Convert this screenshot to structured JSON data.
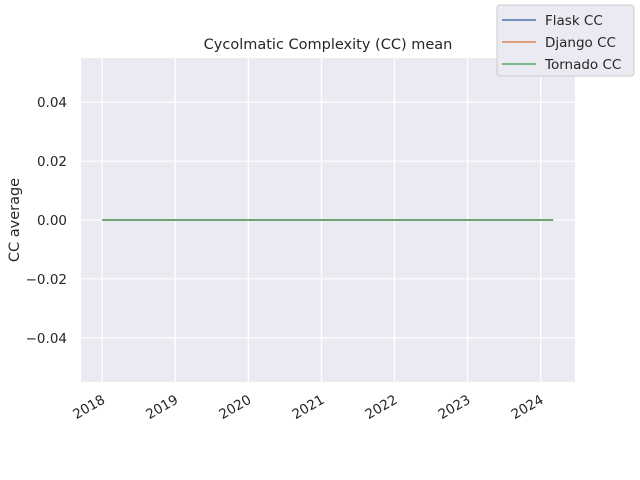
{
  "chart_data": {
    "type": "line",
    "title": "Cycolmatic Complexity (CC) mean",
    "xlabel": "",
    "ylabel": "CC average",
    "x_tick_labels": [
      "2018",
      "2019",
      "2020",
      "2021",
      "2022",
      "2023",
      "2024"
    ],
    "y_tick_labels": [
      "−0.04",
      "−0.02",
      "0.00",
      "0.02",
      "0.04"
    ],
    "x_ticks": [
      2018,
      2019,
      2020,
      2021,
      2022,
      2023,
      2024
    ],
    "y_ticks": [
      -0.04,
      -0.02,
      0.0,
      0.02,
      0.04
    ],
    "xlim": [
      2017.71,
      2024.47
    ],
    "ylim": [
      -0.055,
      0.055
    ],
    "grid": true,
    "legend_placement": "top-right",
    "series": [
      {
        "name": "Flask CC",
        "color": "#4c72b0",
        "x": [
          2018.0,
          2024.17
        ],
        "values": [
          0,
          0
        ]
      },
      {
        "name": "Django CC",
        "color": "#dd8452",
        "x": [
          2018.0,
          2024.17
        ],
        "values": [
          0,
          0
        ]
      },
      {
        "name": "Tornado CC",
        "color": "#55a868",
        "x": [
          2018.0,
          2024.17
        ],
        "values": [
          0,
          0
        ]
      }
    ]
  }
}
